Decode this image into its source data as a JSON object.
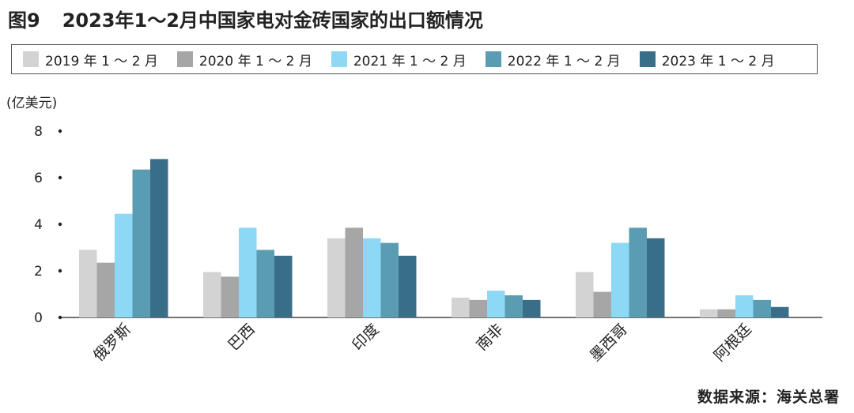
{
  "header": {
    "figure_number": "图9",
    "title": "2023年1～2月中国家电对金砖国家的出口额情况"
  },
  "unit_label": "(亿美元)",
  "source": "数据来源：海关总署",
  "chart_data": {
    "type": "bar",
    "categories": [
      "俄罗斯",
      "巴西",
      "印度",
      "南非",
      "墨西哥",
      "阿根廷"
    ],
    "series": [
      {
        "name": "2019 年 1 ～ 2 月",
        "color": "#d3d3d3",
        "values": [
          2.9,
          1.95,
          3.4,
          0.85,
          1.95,
          0.35
        ]
      },
      {
        "name": "2020 年 1 ～ 2 月",
        "color": "#a6a6a6",
        "values": [
          2.35,
          1.75,
          3.85,
          0.75,
          1.1,
          0.35
        ]
      },
      {
        "name": "2021 年 1 ～ 2 月",
        "color": "#8cd8f5",
        "values": [
          4.45,
          3.85,
          3.4,
          1.15,
          3.2,
          0.95
        ]
      },
      {
        "name": "2022 年 1 ～ 2 月",
        "color": "#5a9db2",
        "values": [
          6.35,
          2.9,
          3.2,
          0.95,
          3.85,
          0.75
        ]
      },
      {
        "name": "2023 年 1 ～ 2 月",
        "color": "#396e89",
        "values": [
          6.8,
          2.65,
          2.65,
          0.75,
          3.4,
          0.45
        ]
      }
    ],
    "yticks": [
      "0",
      "2",
      "4",
      "6",
      "8"
    ],
    "ylim": [
      0,
      8
    ],
    "grid": false,
    "legend_position": "top"
  }
}
